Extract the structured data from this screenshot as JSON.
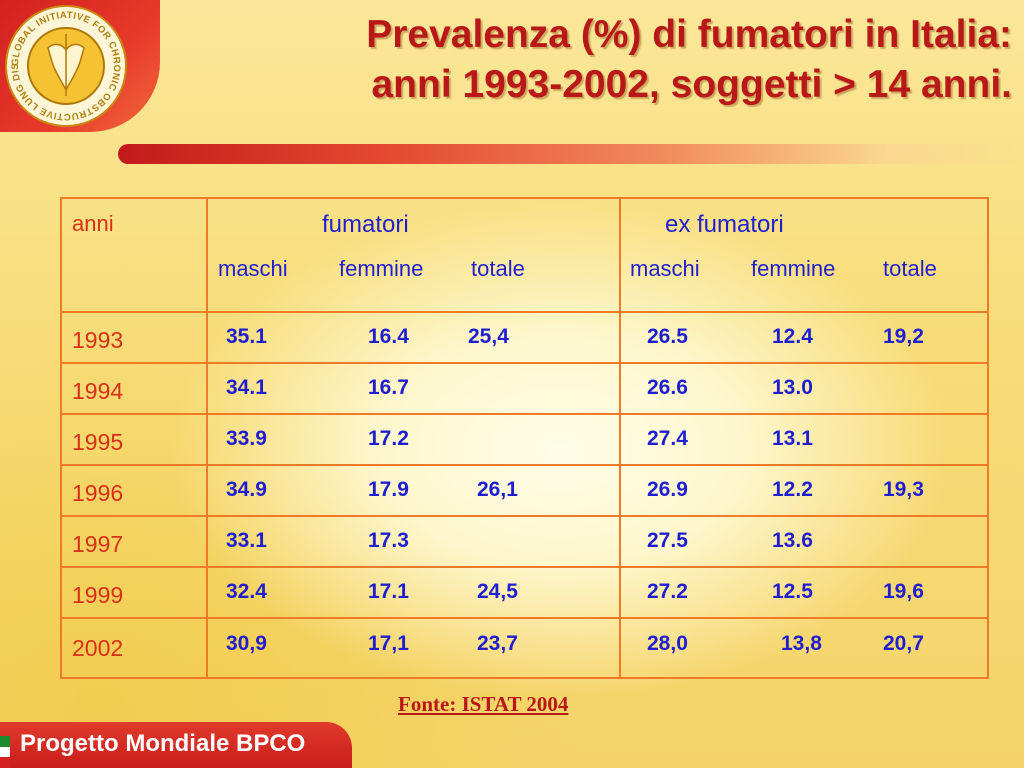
{
  "logo": {
    "icon": "gold-globe-logo",
    "ring_text": "GLOBAL INITIATIVE FOR CHRONIC OBSTRUCTIVE LUNG DISEASE"
  },
  "title": {
    "line1": "Prevalenza (%) di fumatori in Italia:",
    "line2": "anni 1993-2002, soggetti > 14 anni."
  },
  "table": {
    "col_year": "anni",
    "group1": "fumatori",
    "group2": "ex fumatori",
    "subheads": [
      "maschi",
      "femmine",
      "totale"
    ],
    "rows": [
      {
        "year": "1993",
        "f_m": "35.1",
        "f_f": "16.4",
        "f_t": "25,4",
        "e_m": "26.5",
        "e_f": "12.4",
        "e_t": "19,2"
      },
      {
        "year": "1994",
        "f_m": "34.1",
        "f_f": "16.7",
        "f_t": "",
        "e_m": "26.6",
        "e_f": "13.0",
        "e_t": ""
      },
      {
        "year": "1995",
        "f_m": "33.9",
        "f_f": "17.2",
        "f_t": "",
        "e_m": "27.4",
        "e_f": "13.1",
        "e_t": ""
      },
      {
        "year": "1996",
        "f_m": "34.9",
        "f_f": "17.9",
        "f_t": "26,1",
        "e_m": "26.9",
        "e_f": "12.2",
        "e_t": "19,3"
      },
      {
        "year": "1997",
        "f_m": "33.1",
        "f_f": "17.3",
        "f_t": "",
        "e_m": "27.5",
        "e_f": "13.6",
        "e_t": ""
      },
      {
        "year": "1999",
        "f_m": "32.4",
        "f_f": "17.1",
        "f_t": "24,5",
        "e_m": "27.2",
        "e_f": "12.5",
        "e_t": "19,6"
      },
      {
        "year": "2002",
        "f_m": "30,9",
        "f_f": "17,1",
        "f_t": "23,7",
        "e_m": "28,0",
        "e_f": "13,8",
        "e_t": "20,7"
      }
    ]
  },
  "source": "Fonte: ISTAT 2004",
  "footer": {
    "banner_text": "Progetto Mondiale BPCO",
    "flag_colors": [
      "#1a8a2a",
      "#ffffff",
      "#d42020"
    ]
  },
  "colors": {
    "title_red": "#b81818",
    "table_border": "#f07a28",
    "value_blue": "#1f1fd0",
    "year_red": "#d83018"
  }
}
